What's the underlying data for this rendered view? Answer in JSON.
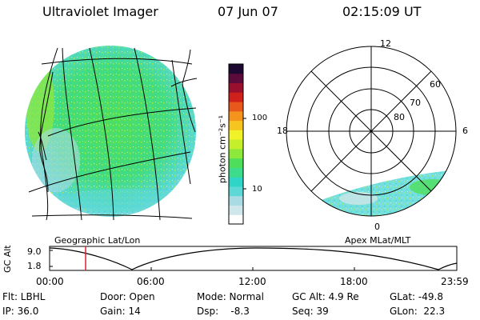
{
  "header": {
    "instrument": "Ultraviolet Imager",
    "date": "07 Jun 07",
    "time": "02:15:09 UT"
  },
  "left_panel": {
    "caption": "Geographic Lat/Lon"
  },
  "right_panel": {
    "caption": "Apex MLat/MLT",
    "mlt_labels": {
      "top": "12",
      "left": "18",
      "right": "6",
      "bottom": "0"
    },
    "lat_labels": [
      "60",
      "70",
      "80"
    ]
  },
  "colorbar": {
    "unit_label": "photon cm⁻²s⁻¹",
    "tick_labels": [
      "100",
      "10"
    ],
    "colors": [
      "#ffffff",
      "#cfe6ea",
      "#a8dbe3",
      "#5cd9d6",
      "#2fd6c8",
      "#3ddc8c",
      "#4fde5c",
      "#8ce83a",
      "#c4ef2a",
      "#f1f227",
      "#f6c51f",
      "#f4941d",
      "#e8581d",
      "#d0201b",
      "#9b0f2e",
      "#5c0a3b",
      "#1c0830"
    ]
  },
  "timeline": {
    "axis_label": "GC Alt",
    "y_ticks": [
      "9.0",
      "1.8"
    ],
    "time_ticks": [
      "00:00",
      "06:00",
      "12:00",
      "18:00",
      "23:59"
    ],
    "marker_color": "#e0202a"
  },
  "footer": {
    "row1": [
      "Flt: LBHL",
      "Door: Open",
      "Mode: Normal",
      "GC Alt: 4.9 Re",
      "GLat: -49.8"
    ],
    "row2": [
      "IP: 36.0",
      "Gain: 14",
      "Dsp:    -8.3",
      "Seq: 39",
      "GLon:  22.3"
    ]
  }
}
